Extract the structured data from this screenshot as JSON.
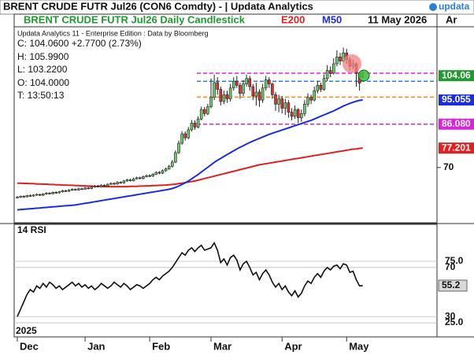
{
  "header": {
    "title": "BRENT CRUDE FUTR  Jul26 (CON6 Comdty) - | Updata Analytics",
    "logo": "updata",
    "edition": "Updata Analytics 11 - Enterprise Edition : Data by Bloomberg",
    "date": "11 May 2026",
    "tab": "Ar"
  },
  "info": [
    "C: 104.0600 +2.7700 (2.73%)",
    "H: 105.9900",
    "L: 103.2200",
    "O: 104.0000",
    "T: 13:50:13"
  ],
  "chart_data": [
    {
      "type": "candlestick",
      "title": "BRENT CRUDE FUTR  Jul26 Daily Candlestick",
      "x_year": "2025",
      "categories": [
        "Dec",
        null,
        null,
        null,
        null,
        null,
        null,
        null,
        null,
        null,
        null,
        null,
        null,
        null,
        null,
        null,
        null,
        null,
        null,
        null,
        null,
        "Jan",
        null,
        null,
        null,
        null,
        null,
        null,
        null,
        null,
        null,
        null,
        null,
        null,
        null,
        null,
        null,
        null,
        null,
        null,
        null,
        "Feb",
        null,
        null,
        null,
        null,
        null,
        null,
        null,
        null,
        null,
        null,
        null,
        null,
        null,
        null,
        null,
        null,
        null,
        null,
        "Mar",
        null,
        null,
        null,
        null,
        null,
        null,
        null,
        null,
        null,
        null,
        null,
        null,
        null,
        null,
        null,
        null,
        null,
        null,
        null,
        null,
        null,
        "Apr",
        null,
        null,
        null,
        null,
        null,
        null,
        null,
        null,
        null,
        null,
        null,
        null,
        null,
        null,
        null,
        null,
        null,
        null,
        null,
        "May",
        null,
        null,
        null,
        null,
        null
      ],
      "open": [
        58.8,
        59.0,
        59.3,
        59.1,
        59.6,
        59.4,
        59.8,
        60.0,
        59.7,
        60.2,
        60.5,
        60.3,
        60.8,
        60.6,
        61.0,
        61.4,
        61.2,
        61.6,
        61.9,
        61.7,
        62.1,
        62.0,
        62.4,
        62.2,
        62.8,
        63.1,
        62.9,
        63.4,
        63.2,
        63.8,
        64.1,
        63.9,
        64.5,
        64.3,
        65.0,
        65.4,
        65.1,
        65.8,
        66.2,
        65.9,
        66.6,
        67.0,
        66.8,
        67.5,
        68.2,
        67.9,
        68.8,
        69.5,
        70.4,
        72.0,
        75.5,
        79.0,
        82.5,
        81.0,
        84.0,
        86.5,
        85.0,
        88.0,
        91.5,
        90.0,
        92.5,
        96.0,
        101.5,
        99.0,
        94.5,
        97.0,
        95.5,
        99.5,
        102.0,
        100.5,
        97.5,
        101.0,
        103.0,
        100.0,
        96.5,
        98.0,
        95.0,
        99.5,
        102.5,
        101.0,
        97.0,
        93.5,
        95.5,
        92.0,
        94.0,
        90.5,
        89.0,
        91.5,
        88.5,
        90.0,
        93.5,
        96.0,
        95.0,
        98.5,
        100.5,
        99.0,
        103.0,
        106.0,
        105.0,
        108.5,
        111.0,
        109.5,
        112.5,
        110.0,
        107.5,
        108.5,
        105.0,
        104.0
      ],
      "high": [
        59.4,
        59.6,
        59.7,
        59.9,
        60.0,
        60.1,
        60.4,
        60.3,
        60.5,
        60.9,
        60.8,
        61.1,
        61.2,
        61.3,
        61.8,
        61.7,
        62.0,
        62.3,
        62.2,
        62.5,
        62.5,
        62.8,
        62.8,
        63.1,
        63.5,
        63.5,
        63.8,
        63.8,
        64.1,
        64.5,
        64.5,
        64.9,
        64.9,
        65.4,
        65.8,
        65.8,
        66.2,
        66.6,
        66.6,
        67.0,
        67.4,
        67.5,
        67.9,
        68.6,
        68.7,
        69.3,
        70.0,
        71.0,
        72.8,
        76.3,
        80.0,
        83.5,
        83.4,
        85.0,
        87.6,
        87.5,
        89.0,
        92.6,
        92.5,
        93.6,
        103.0,
        104.5,
        103.5,
        100.0,
        98.5,
        98.5,
        101.0,
        103.5,
        104.0,
        101.5,
        102.5,
        104.5,
        104.0,
        101.0,
        101.5,
        99.0,
        101.0,
        104.0,
        103.5,
        101.5,
        98.0,
        97.0,
        96.5,
        95.5,
        95.0,
        92.0,
        93.0,
        92.0,
        91.5,
        95.0,
        97.5,
        97.0,
        100.0,
        102.0,
        101.5,
        104.5,
        108.0,
        107.5,
        110.5,
        113.5,
        112.5,
        114.5,
        114.0,
        111.0,
        110.0,
        109.0,
        105.5,
        105.99
      ],
      "low": [
        58.5,
        58.7,
        58.8,
        58.9,
        59.1,
        59.1,
        59.5,
        59.4,
        59.4,
        59.9,
        60.0,
        60.0,
        60.3,
        60.3,
        60.7,
        60.9,
        60.9,
        61.3,
        61.4,
        61.4,
        61.7,
        61.7,
        61.9,
        61.9,
        62.5,
        62.6,
        62.6,
        62.9,
        62.9,
        63.5,
        63.6,
        63.6,
        64.0,
        64.0,
        64.7,
        64.8,
        64.8,
        65.5,
        65.6,
        65.6,
        66.3,
        66.4,
        66.5,
        67.2,
        67.5,
        67.6,
        68.4,
        69.1,
        70.0,
        71.6,
        75.0,
        78.4,
        80.0,
        80.5,
        83.4,
        84.0,
        84.5,
        87.5,
        89.0,
        89.4,
        92.0,
        95.0,
        97.0,
        93.0,
        93.5,
        94.0,
        94.5,
        98.5,
        99.5,
        95.5,
        96.5,
        100.0,
        98.5,
        95.0,
        93.0,
        92.5,
        94.0,
        98.5,
        99.5,
        95.5,
        91.0,
        90.5,
        90.0,
        89.5,
        88.5,
        87.5,
        88.0,
        86.5,
        87.0,
        89.0,
        92.5,
        93.5,
        94.5,
        97.5,
        98.0,
        98.5,
        102.0,
        103.5,
        104.5,
        107.5,
        108.0,
        109.0,
        108.5,
        106.0,
        106.5,
        100.0,
        98.5,
        103.22
      ],
      "close": [
        59.0,
        59.3,
        59.1,
        59.6,
        59.4,
        59.8,
        60.0,
        59.7,
        60.2,
        60.5,
        60.3,
        60.8,
        60.6,
        61.0,
        61.4,
        61.2,
        61.6,
        61.9,
        61.7,
        62.1,
        62.0,
        62.4,
        62.2,
        62.8,
        63.1,
        62.9,
        63.4,
        63.2,
        63.8,
        64.1,
        63.9,
        64.5,
        64.3,
        65.0,
        65.4,
        65.1,
        65.8,
        66.2,
        65.9,
        66.6,
        67.0,
        66.8,
        67.5,
        68.2,
        67.9,
        68.8,
        69.5,
        70.4,
        72.0,
        75.5,
        79.0,
        82.5,
        81.0,
        84.0,
        86.5,
        85.0,
        88.0,
        91.5,
        90.0,
        92.5,
        96.0,
        101.5,
        99.0,
        94.5,
        97.0,
        95.5,
        99.5,
        102.0,
        100.5,
        97.5,
        101.0,
        103.0,
        100.0,
        96.5,
        98.0,
        95.0,
        99.5,
        102.5,
        101.0,
        97.0,
        93.5,
        95.5,
        92.0,
        94.0,
        90.5,
        89.0,
        91.5,
        88.5,
        90.0,
        93.5,
        96.0,
        95.0,
        98.5,
        100.5,
        99.0,
        103.0,
        106.0,
        105.0,
        108.5,
        111.0,
        109.5,
        112.5,
        110.0,
        107.5,
        108.5,
        105.0,
        101.29,
        104.06
      ],
      "up_color": "#6cc86c",
      "down_color": "#e23030",
      "close_label_color": "#1f9a2e",
      "series": [
        {
          "name": "E200",
          "color": "#e02020",
          "values": [
            64.2,
            64.2,
            64.1,
            64.1,
            64.0,
            64.0,
            63.9,
            63.9,
            63.8,
            63.8,
            63.7,
            63.7,
            63.6,
            63.6,
            63.5,
            63.5,
            63.4,
            63.4,
            63.3,
            63.3,
            63.2,
            63.2,
            63.1,
            63.1,
            63.0,
            63.0,
            63.0,
            62.9,
            62.9,
            62.9,
            62.9,
            62.9,
            62.9,
            62.9,
            62.9,
            63.0,
            63.0,
            63.0,
            63.1,
            63.1,
            63.2,
            63.2,
            63.3,
            63.3,
            63.4,
            63.4,
            63.5,
            63.6,
            63.7,
            63.8,
            64.0,
            64.2,
            64.4,
            64.6,
            64.8,
            65.0,
            65.3,
            65.6,
            65.9,
            66.2,
            66.5,
            66.8,
            67.1,
            67.4,
            67.7,
            68.0,
            68.3,
            68.6,
            68.9,
            69.2,
            69.5,
            69.8,
            70.1,
            70.4,
            70.7,
            71.0,
            71.2,
            71.4,
            71.6,
            71.8,
            72.0,
            72.2,
            72.4,
            72.6,
            72.8,
            73.0,
            73.2,
            73.4,
            73.6,
            73.8,
            74.0,
            74.2,
            74.4,
            74.6,
            74.8,
            75.0,
            75.2,
            75.4,
            75.6,
            75.8,
            76.0,
            76.2,
            76.4,
            76.6,
            76.8,
            76.9,
            77.1,
            77.201
          ]
        },
        {
          "name": "M50",
          "color": "#1a2ee0",
          "values": [
            54.3,
            54.4,
            54.5,
            54.6,
            54.7,
            54.8,
            54.9,
            55.0,
            55.1,
            55.2,
            55.3,
            55.4,
            55.5,
            55.6,
            55.7,
            55.8,
            55.9,
            56.0,
            56.1,
            56.3,
            56.5,
            56.7,
            56.9,
            57.1,
            57.3,
            57.5,
            57.7,
            57.9,
            58.1,
            58.3,
            58.5,
            58.7,
            58.9,
            59.1,
            59.3,
            59.5,
            59.7,
            59.9,
            60.1,
            60.3,
            60.5,
            60.7,
            60.9,
            61.1,
            61.3,
            61.5,
            61.7,
            61.9,
            62.2,
            62.6,
            63.1,
            63.7,
            64.3,
            65.0,
            65.8,
            66.6,
            67.4,
            68.3,
            69.2,
            70.1,
            71.0,
            71.9,
            72.7,
            73.4,
            74.1,
            74.8,
            75.5,
            76.2,
            76.9,
            77.5,
            78.1,
            78.7,
            79.3,
            79.8,
            80.3,
            80.8,
            81.3,
            81.8,
            82.3,
            82.7,
            83.1,
            83.5,
            83.9,
            84.3,
            84.7,
            85.1,
            85.5,
            85.9,
            86.3,
            86.7,
            87.1,
            87.5,
            88.0,
            88.5,
            89.0,
            89.5,
            90.0,
            90.5,
            91.0,
            91.6,
            92.2,
            92.8,
            93.3,
            93.8,
            94.2,
            94.6,
            94.9,
            95.055
          ]
        }
      ],
      "levels": [
        {
          "value": 105.0,
          "color": "#e020e0"
        },
        {
          "value": 86.08,
          "label": "86.080",
          "color": "#e020e0"
        },
        {
          "value": 102.0,
          "color": "#2a7fe0"
        },
        {
          "value": 96.1,
          "color": "#f08a20"
        }
      ],
      "ylim": [
        49.5,
        126.3
      ],
      "yticks": [
        70
      ]
    },
    {
      "type": "line",
      "title": "14 RSI",
      "color": "#111111",
      "values": [
        30,
        36,
        42,
        48,
        52,
        50,
        55,
        53,
        57,
        54,
        58,
        56,
        53,
        55,
        52,
        54,
        56,
        58,
        55,
        57,
        54,
        56,
        53,
        55,
        52,
        54,
        57,
        55,
        53,
        55,
        58,
        56,
        54,
        57,
        55,
        52,
        54,
        56,
        55,
        53,
        55,
        57,
        60,
        62,
        60,
        63,
        65,
        67,
        70,
        74,
        78,
        82,
        80,
        84,
        86,
        83,
        86,
        88,
        84,
        85,
        86,
        90,
        84,
        74,
        77,
        72,
        78,
        80,
        76,
        68,
        73,
        75,
        70,
        64,
        66,
        60,
        65,
        68,
        64,
        58,
        54,
        57,
        52,
        55,
        50,
        47,
        51,
        46,
        49,
        55,
        59,
        57,
        62,
        65,
        62,
        67,
        70,
        68,
        71,
        72,
        69,
        73,
        72,
        66,
        67,
        60,
        55,
        55.2
      ],
      "ylim": [
        13.5,
        105.1
      ],
      "yticks": [
        {
          "value": 75,
          "label": "75.0"
        },
        70,
        30,
        {
          "value": 25,
          "label": "25.0"
        }
      ]
    }
  ]
}
